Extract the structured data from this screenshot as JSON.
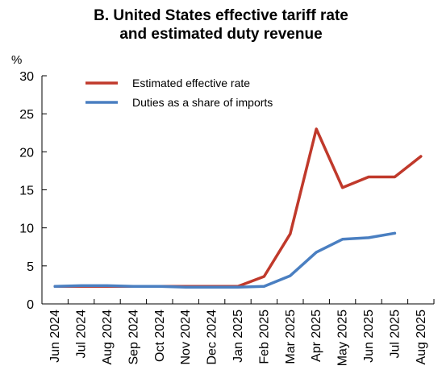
{
  "chart_data": {
    "type": "line",
    "title_line1": "B. United States effective tariff rate",
    "title_line2": "and estimated duty revenue",
    "unit_label": "%",
    "categories": [
      "Jun 2024",
      "Jul 2024",
      "Aug 2024",
      "Sep 2024",
      "Oct 2024",
      "Nov 2024",
      "Dec 2024",
      "Jan 2025",
      "Feb 2025",
      "Mar 2025",
      "Apr 2025",
      "May 2025",
      "Jun 2025",
      "Jul 2025",
      "Aug 2025"
    ],
    "ylim": [
      0,
      30
    ],
    "yticks": [
      0,
      5,
      10,
      15,
      20,
      25,
      30
    ],
    "grid": false,
    "legend_position": "top-left",
    "series": [
      {
        "name": "Estimated effective rate",
        "color": "#c0392b",
        "values": [
          2.3,
          2.3,
          2.3,
          2.3,
          2.3,
          2.3,
          2.3,
          2.3,
          3.6,
          9.2,
          23.0,
          15.3,
          16.7,
          16.7,
          19.4
        ]
      },
      {
        "name": "Duties as a share of imports",
        "color": "#4a7fc1",
        "values": [
          2.3,
          2.4,
          2.4,
          2.3,
          2.3,
          2.2,
          2.2,
          2.2,
          2.3,
          3.7,
          6.8,
          8.5,
          8.7,
          9.3,
          null
        ]
      }
    ]
  }
}
